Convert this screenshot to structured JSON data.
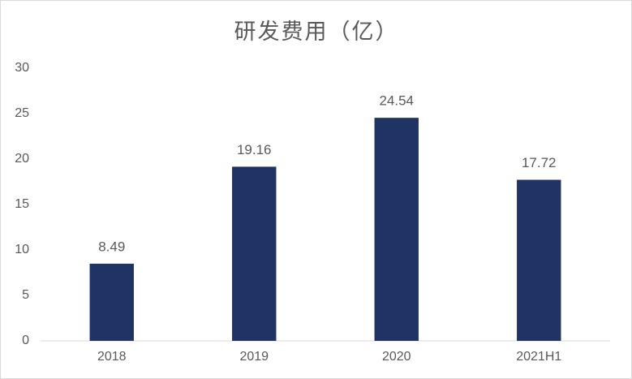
{
  "chart_data": {
    "type": "bar",
    "title": "研发费用（亿）",
    "categories": [
      "2018",
      "2019",
      "2020",
      "2021H1"
    ],
    "values": [
      8.49,
      19.16,
      24.54,
      17.72
    ],
    "color": "#1f3364",
    "ylim": [
      0,
      30
    ],
    "yticks": [
      0,
      5,
      10,
      15,
      20,
      25,
      30
    ],
    "grid": false
  }
}
